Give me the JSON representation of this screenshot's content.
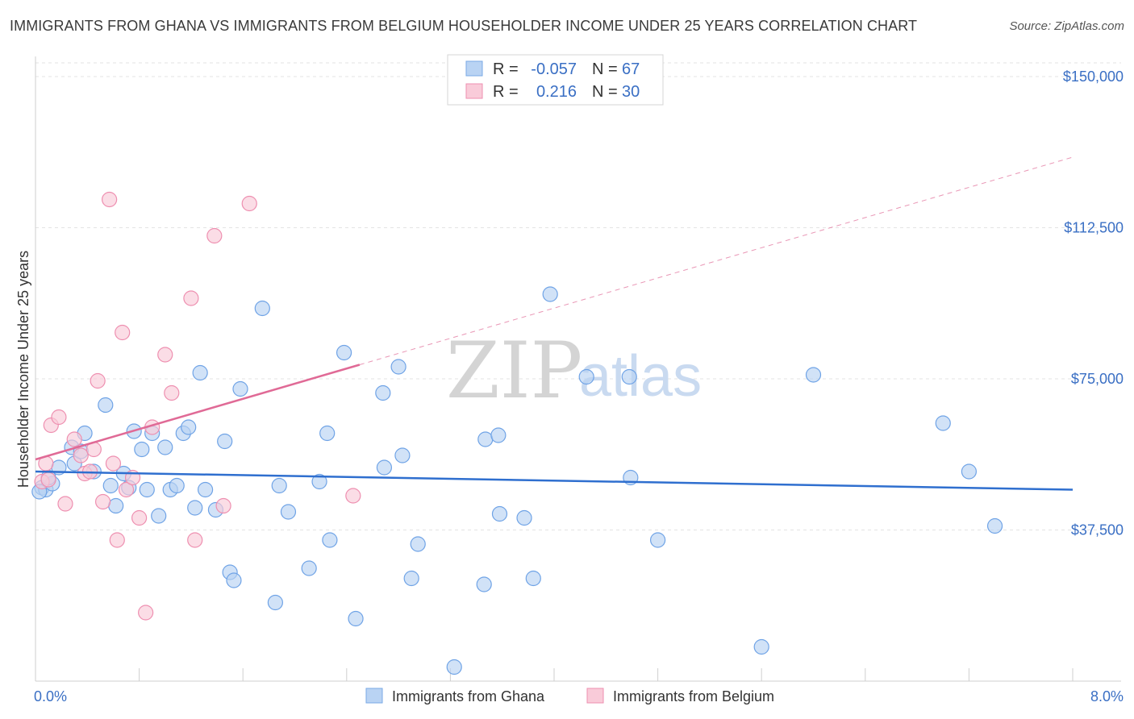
{
  "title": "IMMIGRANTS FROM GHANA VS IMMIGRANTS FROM BELGIUM HOUSEHOLDER INCOME UNDER 25 YEARS CORRELATION CHART",
  "source": "Source: ZipAtlas.com",
  "watermark": {
    "zip": "ZIP",
    "atlas": "atlas"
  },
  "stats": [
    {
      "r_label": "R =",
      "r_value": "-0.057",
      "n_label": "N =",
      "n_value": "67",
      "color": "#a8c8f0"
    },
    {
      "r_label": "R =",
      "r_value": "0.216",
      "n_label": "N =",
      "n_value": "30",
      "color": "#f6b9cc"
    }
  ],
  "chart_data": {
    "type": "scatter",
    "title": "IMMIGRANTS FROM GHANA VS IMMIGRANTS FROM BELGIUM HOUSEHOLDER INCOME UNDER 25 YEARS CORRELATION CHART",
    "xlabel": "",
    "ylabel": "Householder Income Under 25 years",
    "xlim": [
      0,
      8
    ],
    "ylim": [
      0,
      155000
    ],
    "x_tick_labels": [
      {
        "value": 0,
        "label": "0.0%"
      },
      {
        "value": 8,
        "label": "8.0%"
      }
    ],
    "y_ticks": [
      {
        "value": 37500,
        "label": "$37,500"
      },
      {
        "value": 75000,
        "label": "$75,000"
      },
      {
        "value": 112500,
        "label": "$112,500"
      },
      {
        "value": 150000,
        "label": "$150,000"
      }
    ],
    "legend_position": "bottom-center",
    "series": [
      {
        "name": "Immigrants from Ghana",
        "color": "#6fa3e6",
        "fill": "#b9d3f3",
        "trend": {
          "x": [
            0,
            8
          ],
          "y": [
            52000,
            47500
          ],
          "style": "solid"
        },
        "points": [
          [
            0.05,
            48000
          ],
          [
            0.08,
            47500
          ],
          [
            0.13,
            49000
          ],
          [
            0.18,
            53000
          ],
          [
            0.3,
            54000
          ],
          [
            0.28,
            58000
          ],
          [
            0.35,
            57000
          ],
          [
            0.38,
            61500
          ],
          [
            0.45,
            52000
          ],
          [
            0.54,
            68500
          ],
          [
            0.58,
            48500
          ],
          [
            0.62,
            43500
          ],
          [
            0.68,
            51500
          ],
          [
            0.72,
            48000
          ],
          [
            0.76,
            62000
          ],
          [
            0.82,
            57500
          ],
          [
            0.86,
            47500
          ],
          [
            0.9,
            61500
          ],
          [
            0.95,
            41000
          ],
          [
            1.0,
            58000
          ],
          [
            1.04,
            47500
          ],
          [
            1.09,
            48500
          ],
          [
            1.14,
            61500
          ],
          [
            1.18,
            63000
          ],
          [
            1.23,
            43000
          ],
          [
            1.27,
            76500
          ],
          [
            1.31,
            47500
          ],
          [
            1.39,
            42500
          ],
          [
            1.46,
            59500
          ],
          [
            1.5,
            27000
          ],
          [
            1.53,
            25000
          ],
          [
            1.58,
            72500
          ],
          [
            1.75,
            92500
          ],
          [
            1.85,
            19500
          ],
          [
            1.88,
            48500
          ],
          [
            1.95,
            42000
          ],
          [
            2.11,
            28000
          ],
          [
            2.19,
            49500
          ],
          [
            2.25,
            61500
          ],
          [
            2.27,
            35000
          ],
          [
            2.38,
            81500
          ],
          [
            2.47,
            15500
          ],
          [
            2.69,
            53000
          ],
          [
            2.68,
            71500
          ],
          [
            2.8,
            78000
          ],
          [
            2.83,
            56000
          ],
          [
            2.9,
            25500
          ],
          [
            2.95,
            34000
          ],
          [
            3.23,
            3500
          ],
          [
            3.46,
            24000
          ],
          [
            3.47,
            60000
          ],
          [
            3.58,
            41500
          ],
          [
            3.57,
            61000
          ],
          [
            3.77,
            40500
          ],
          [
            3.84,
            25500
          ],
          [
            3.97,
            96000
          ],
          [
            4.25,
            75500
          ],
          [
            4.58,
            75500
          ],
          [
            4.59,
            50500
          ],
          [
            4.8,
            35000
          ],
          [
            5.6,
            8500
          ],
          [
            6.0,
            76000
          ],
          [
            7.0,
            64000
          ],
          [
            7.2,
            52000
          ],
          [
            7.4,
            38500
          ],
          [
            0.03,
            47000
          ],
          [
            0.1,
            50500
          ]
        ]
      },
      {
        "name": "Immigrants from Belgium",
        "color": "#ee8fb0",
        "fill": "#f9cbd9",
        "trend": {
          "x": [
            0,
            2.5
          ],
          "y": [
            55000,
            78500
          ],
          "style": "solid",
          "extended_to": {
            "x": 8,
            "y": 130000
          },
          "extended_style": "dashed"
        },
        "points": [
          [
            0.05,
            49500
          ],
          [
            0.08,
            54000
          ],
          [
            0.1,
            50000
          ],
          [
            0.12,
            63500
          ],
          [
            0.18,
            65500
          ],
          [
            0.23,
            44000
          ],
          [
            0.3,
            60000
          ],
          [
            0.35,
            56000
          ],
          [
            0.38,
            51500
          ],
          [
            0.42,
            52000
          ],
          [
            0.45,
            57500
          ],
          [
            0.48,
            74500
          ],
          [
            0.52,
            44500
          ],
          [
            0.57,
            119500
          ],
          [
            0.6,
            54000
          ],
          [
            0.63,
            35000
          ],
          [
            0.67,
            86500
          ],
          [
            0.7,
            47500
          ],
          [
            0.75,
            50500
          ],
          [
            0.8,
            40500
          ],
          [
            0.85,
            17000
          ],
          [
            0.9,
            63000
          ],
          [
            1.0,
            81000
          ],
          [
            1.05,
            71500
          ],
          [
            1.2,
            95000
          ],
          [
            1.23,
            35000
          ],
          [
            1.38,
            110500
          ],
          [
            1.45,
            43500
          ],
          [
            1.65,
            118500
          ],
          [
            2.45,
            46000
          ]
        ]
      }
    ]
  }
}
